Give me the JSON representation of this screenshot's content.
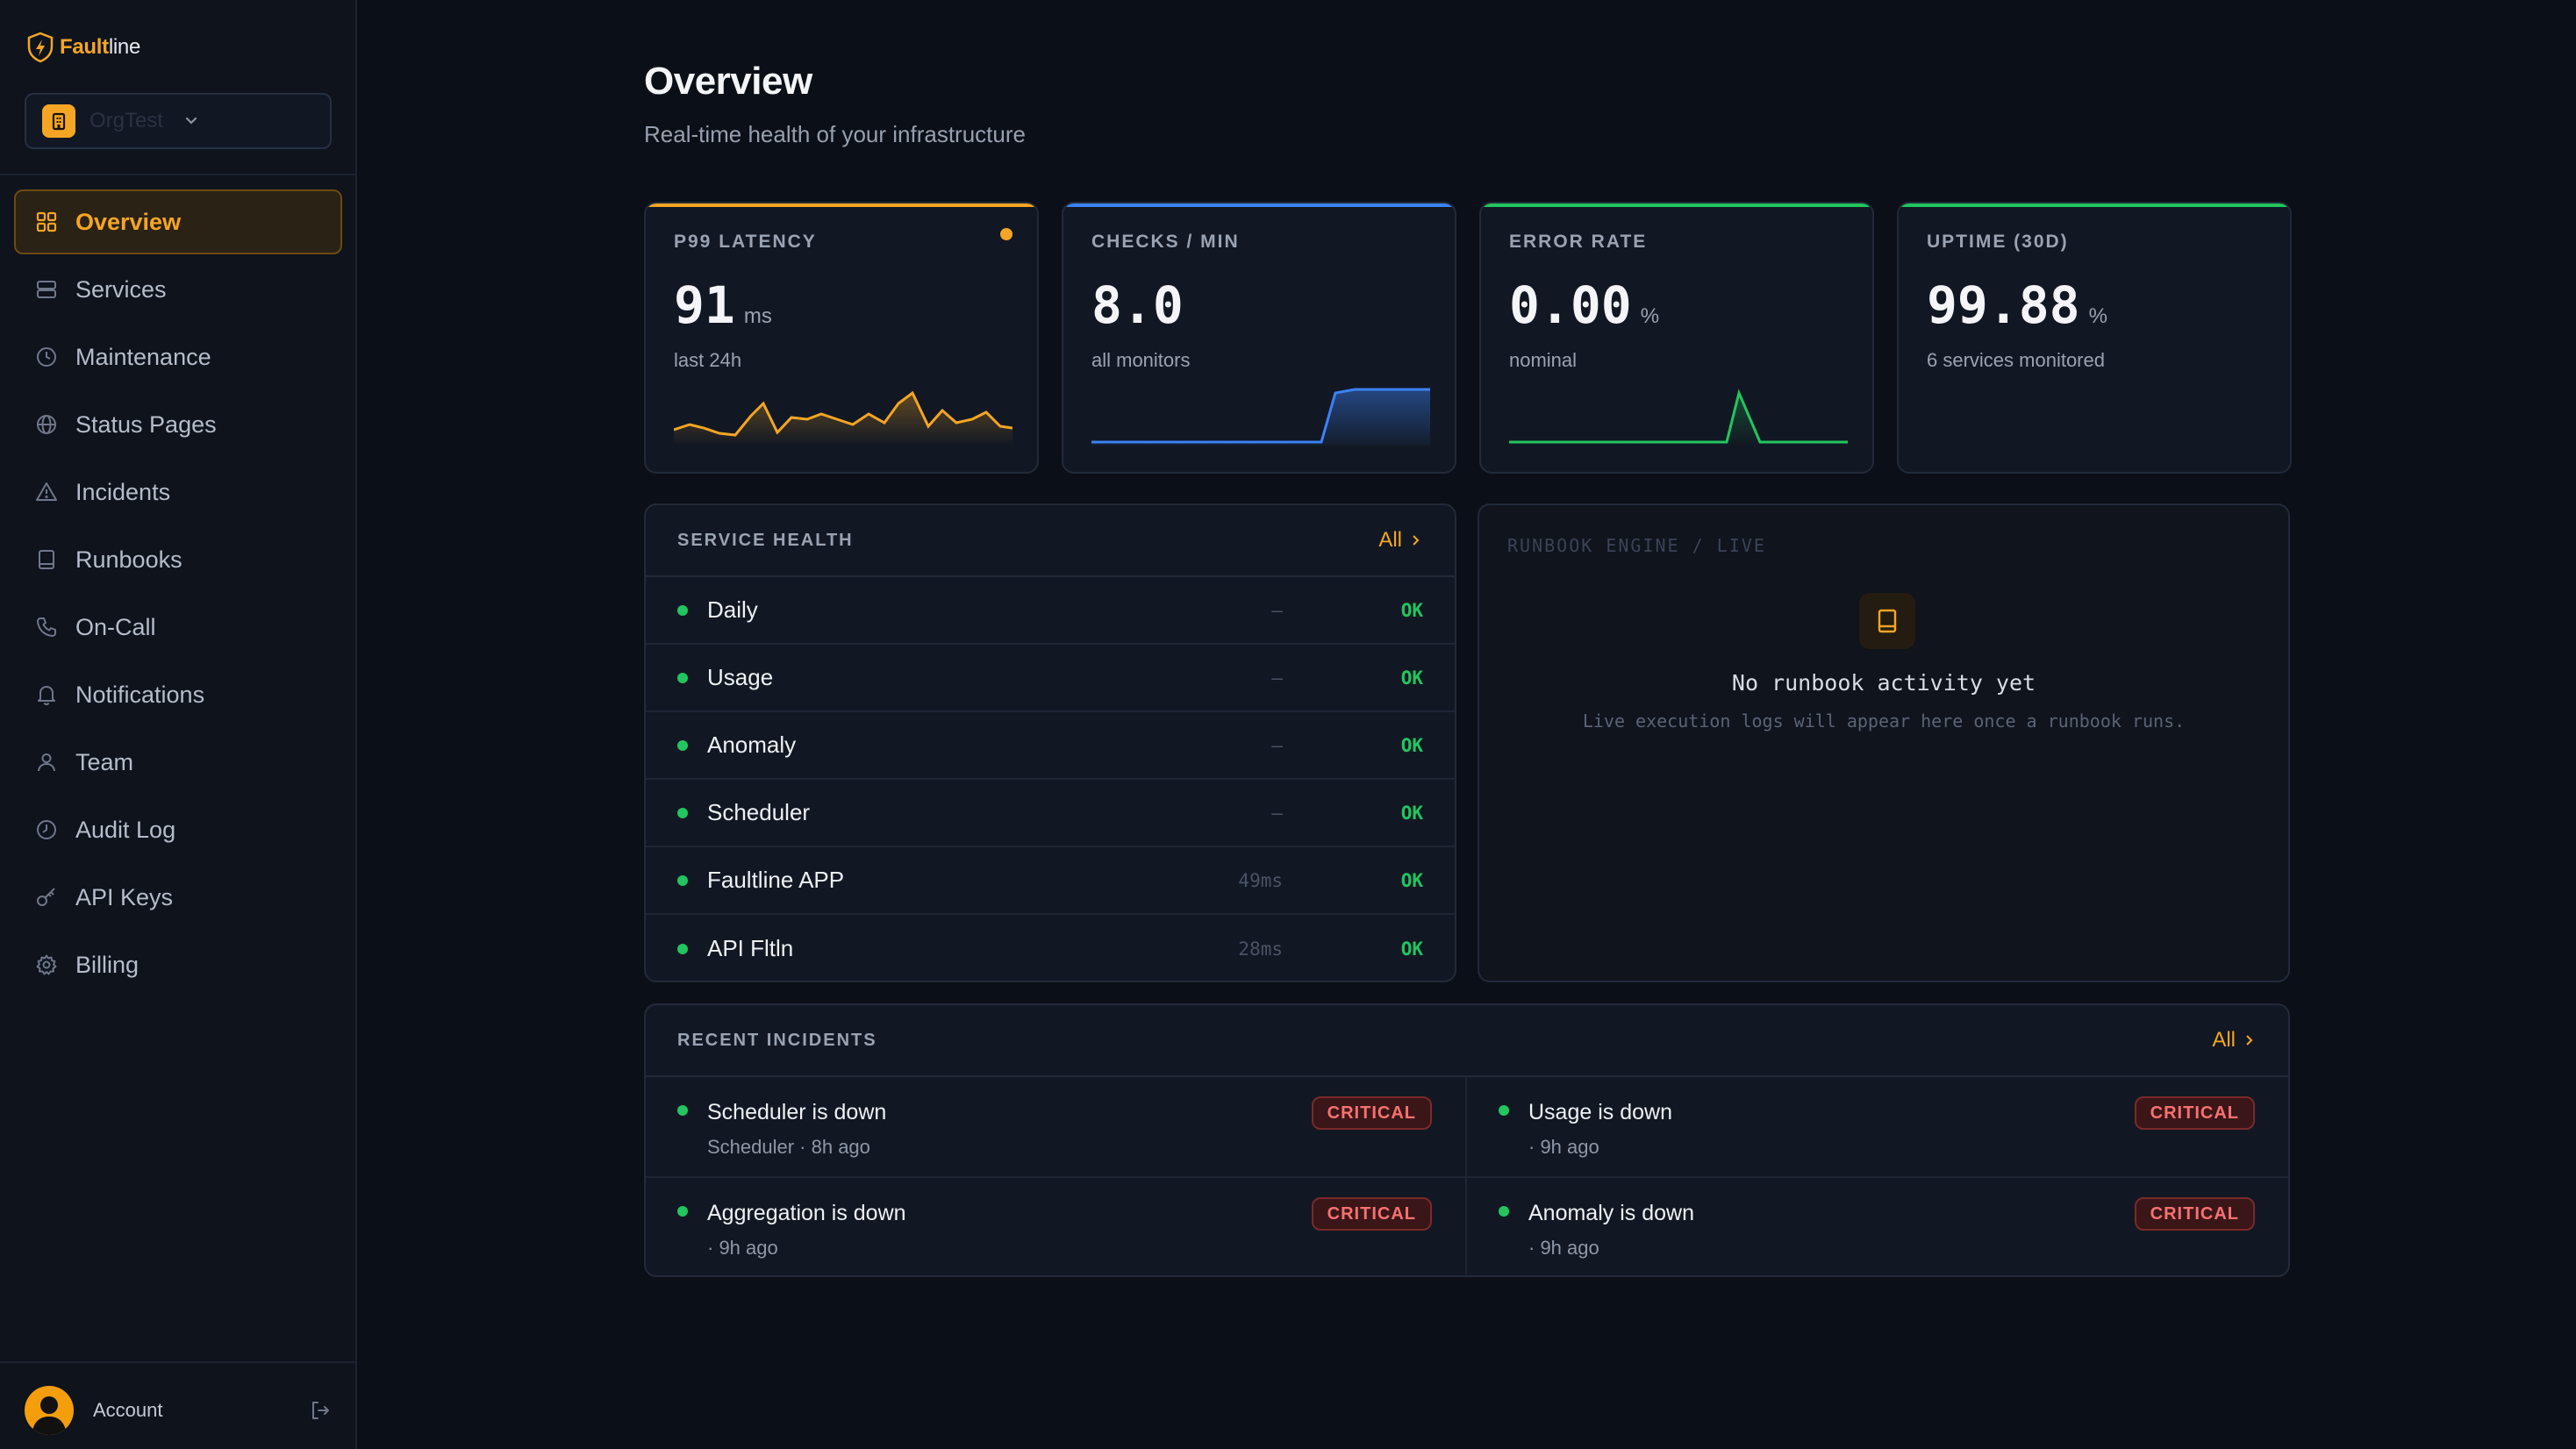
{
  "brand": {
    "name_prefix": "Fault",
    "name_suffix": "line"
  },
  "org": {
    "name": "OrgTest"
  },
  "sidebar": {
    "items": [
      {
        "label": "Overview",
        "icon": "grid-icon",
        "active": true
      },
      {
        "label": "Services",
        "icon": "server-icon"
      },
      {
        "label": "Maintenance",
        "icon": "clock-icon"
      },
      {
        "label": "Status Pages",
        "icon": "globe-icon"
      },
      {
        "label": "Incidents",
        "icon": "warning-icon"
      },
      {
        "label": "Runbooks",
        "icon": "book-icon"
      },
      {
        "label": "On-Call",
        "icon": "phone-icon"
      },
      {
        "label": "Notifications",
        "icon": "bell-icon"
      },
      {
        "label": "Team",
        "icon": "user-icon"
      },
      {
        "label": "Audit Log",
        "icon": "history-icon"
      },
      {
        "label": "API Keys",
        "icon": "key-icon"
      },
      {
        "label": "Billing",
        "icon": "gear-icon"
      }
    ],
    "account_label": "Account"
  },
  "header": {
    "title": "Overview",
    "subtitle": "Real-time health of your infrastructure"
  },
  "stats": [
    {
      "label": "P99 LATENCY",
      "value": "91",
      "unit": "ms",
      "sub": "last 24h",
      "color": "#f5a524",
      "has_dot": true
    },
    {
      "label": "CHECKS / MIN",
      "value": "8.0",
      "unit": "",
      "sub": "all monitors",
      "color": "#3b82f6"
    },
    {
      "label": "ERROR RATE",
      "value": "0.00",
      "unit": "%",
      "sub": "nominal",
      "color": "#22c55e"
    },
    {
      "label": "UPTIME (30D)",
      "value": "99.88",
      "unit": "%",
      "sub": "6 services monitored",
      "color": "#22c55e"
    }
  ],
  "service_health": {
    "title": "SERVICE HEALTH",
    "all_label": "All",
    "rows": [
      {
        "name": "Daily",
        "latency": "—",
        "status": "OK"
      },
      {
        "name": "Usage",
        "latency": "—",
        "status": "OK"
      },
      {
        "name": "Anomaly",
        "latency": "—",
        "status": "OK"
      },
      {
        "name": "Scheduler",
        "latency": "—",
        "status": "OK"
      },
      {
        "name": "Faultline APP",
        "latency": "49ms",
        "status": "OK"
      },
      {
        "name": "API Fltln",
        "latency": "28ms",
        "status": "OK"
      }
    ]
  },
  "runbook": {
    "title": "RUNBOOK ENGINE / LIVE",
    "empty": "No runbook activity yet",
    "hint": "Live execution logs will appear here once a runbook runs."
  },
  "incidents": {
    "title": "RECENT INCIDENTS",
    "all_label": "All",
    "items": [
      {
        "title": "Scheduler is down",
        "meta": "Scheduler · 8h ago",
        "severity": "CRITICAL"
      },
      {
        "title": "Usage is down",
        "meta": "· 9h ago",
        "severity": "CRITICAL"
      },
      {
        "title": "Aggregation is down",
        "meta": "· 9h ago",
        "severity": "CRITICAL"
      },
      {
        "title": "Anomaly is down",
        "meta": "· 9h ago",
        "severity": "CRITICAL"
      }
    ]
  }
}
